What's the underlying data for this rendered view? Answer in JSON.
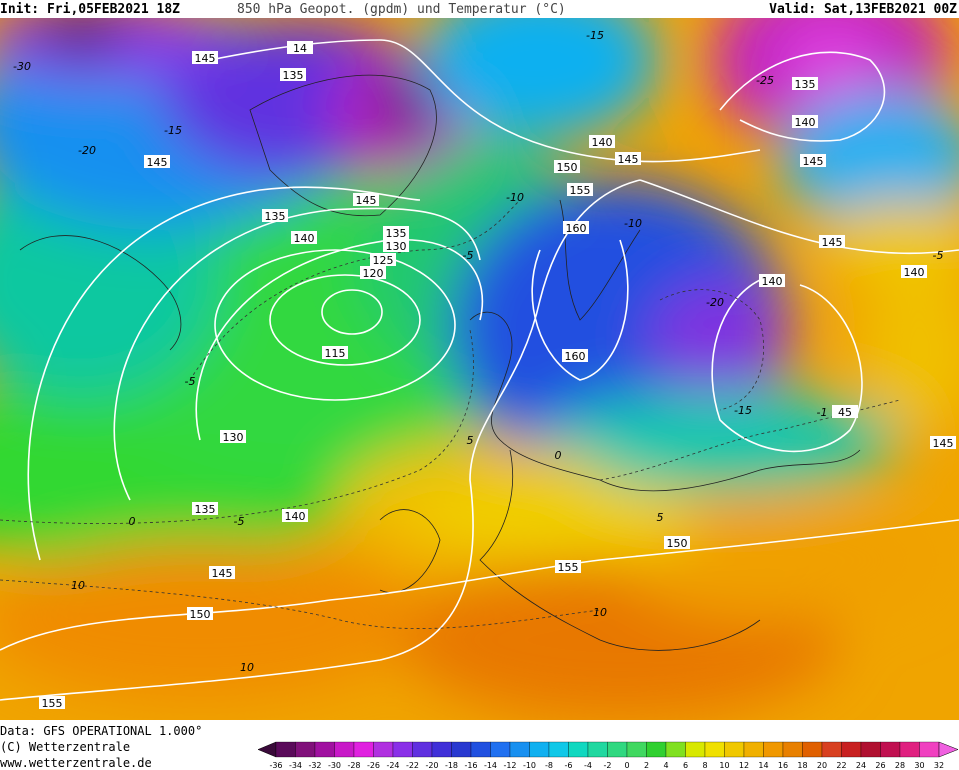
{
  "header": {
    "init": "Init: Fri,05FEB2021 18Z",
    "title": "850 hPa Geopot. (gpdm) und Temperatur (°C)",
    "valid": "Valid: Sat,13FEB2021 00Z"
  },
  "footer": {
    "data": "Data: GFS OPERATIONAL 1.000°",
    "copyright": "(C) Wetterzentrale",
    "url": "www.wetterzentrale.de"
  },
  "contour_labels": [
    "145",
    "14",
    "135",
    "145",
    "135",
    "140",
    "145",
    "135",
    "130",
    "125",
    "120",
    "115",
    "130",
    "135",
    "140",
    "145",
    "150",
    "155",
    "140",
    "145",
    "150",
    "155",
    "160",
    "160",
    "135",
    "140",
    "145",
    "145",
    "140",
    "140",
    "45",
    "145",
    "150",
    "155"
  ],
  "temperature_labels": [
    "-30",
    "-15",
    "-20",
    "-10",
    "-5",
    "-5",
    "5",
    "0",
    "-5",
    "10",
    "10",
    "10",
    "-25",
    "-15",
    "-10",
    "-20",
    "-15",
    "-1",
    "-5",
    "5",
    "0"
  ],
  "colorbar": {
    "ticks": [
      -36,
      -34,
      -32,
      -30,
      -28,
      -26,
      -24,
      -22,
      -20,
      -18,
      -16,
      -14,
      -12,
      -10,
      -8,
      -6,
      -4,
      -2,
      0,
      2,
      4,
      6,
      8,
      10,
      12,
      14,
      16,
      18,
      20,
      22,
      24,
      26,
      28,
      30,
      32
    ],
    "colors": [
      "#3a0a3a",
      "#5a0a5a",
      "#80107a",
      "#a010a0",
      "#c818c8",
      "#e020e0",
      "#b030e0",
      "#8a30e8",
      "#6030e0",
      "#4030d8",
      "#2838d0",
      "#2050e0",
      "#2070f0",
      "#1890f0",
      "#10b0f0",
      "#10c8e8",
      "#10d8c0",
      "#20d8a0",
      "#30d880",
      "#40d860",
      "#30d030",
      "#80e020",
      "#d8e800",
      "#f0e000",
      "#f0c800",
      "#f0b000",
      "#f09800",
      "#e88000",
      "#e06000",
      "#d84020",
      "#c82020",
      "#b01030",
      "#c01050",
      "#e02080",
      "#f040c0",
      "#f060e0"
    ]
  }
}
